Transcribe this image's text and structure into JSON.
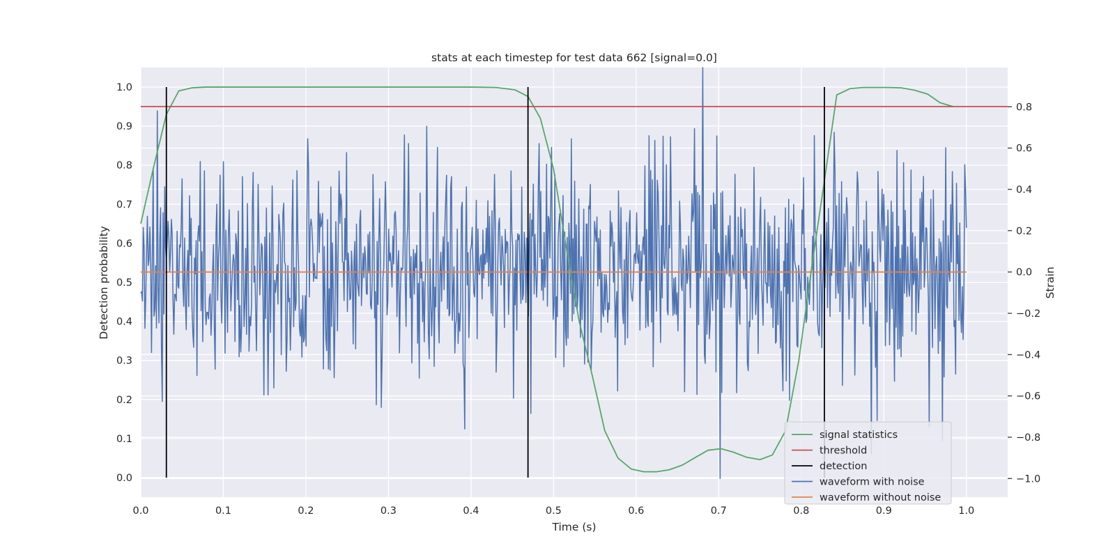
{
  "chart_data": {
    "type": "line",
    "title": "stats at each timestep for test data 662 [signal=0.0]",
    "xlabel": "Time (s)",
    "ylabel": "Detection probability",
    "ylabel_right": "Strain",
    "xlim": [
      0.0,
      1.05
    ],
    "ylim": [
      -0.05,
      1.05
    ],
    "ylim_right": [
      -1.09,
      0.99
    ],
    "x_ticks": [
      0.0,
      0.1,
      0.2,
      0.3,
      0.4,
      0.5,
      0.6,
      0.7,
      0.8,
      0.9,
      1.0
    ],
    "x_tick_labels": [
      "0.0",
      "0.1",
      "0.2",
      "0.3",
      "0.4",
      "0.5",
      "0.6",
      "0.7",
      "0.8",
      "0.9",
      "1.0"
    ],
    "y_ticks": [
      0.0,
      0.1,
      0.2,
      0.3,
      0.4,
      0.5,
      0.6,
      0.7,
      0.8,
      0.9,
      1.0
    ],
    "y_tick_labels": [
      "0.0",
      "0.1",
      "0.2",
      "0.3",
      "0.4",
      "0.5",
      "0.6",
      "0.7",
      "0.8",
      "0.9",
      "1.0"
    ],
    "y_right_ticks": [
      -1.0,
      -0.8,
      -0.6,
      -0.4,
      -0.2,
      0.0,
      0.2,
      0.4,
      0.6,
      0.8
    ],
    "y_right_tick_labels": [
      "−1.0",
      "−0.8",
      "−0.6",
      "−0.4",
      "−0.2",
      "0.0",
      "0.2",
      "0.4",
      "0.6",
      "0.8"
    ],
    "grid": true,
    "legend_position": "lower-right",
    "series": [
      {
        "name": "signal statistics",
        "axis": "left",
        "color": "#55a868",
        "x": [
          0.0,
          0.015,
          0.031,
          0.046,
          0.062,
          0.078,
          0.1,
          0.2,
          0.3,
          0.4,
          0.43,
          0.453,
          0.469,
          0.484,
          0.5,
          0.516,
          0.531,
          0.547,
          0.562,
          0.578,
          0.594,
          0.609,
          0.625,
          0.64,
          0.656,
          0.672,
          0.687,
          0.703,
          0.718,
          0.734,
          0.75,
          0.765,
          0.781,
          0.797,
          0.812,
          0.828,
          0.843,
          0.859,
          0.875,
          0.89,
          0.906,
          0.921,
          0.937,
          0.953,
          0.968,
          0.984
        ],
        "y": [
          0.65,
          0.79,
          0.93,
          0.99,
          0.998,
          1.0,
          1.0,
          1.0,
          1.0,
          1.0,
          0.999,
          0.993,
          0.976,
          0.92,
          0.79,
          0.58,
          0.4,
          0.26,
          0.12,
          0.05,
          0.022,
          0.015,
          0.015,
          0.02,
          0.032,
          0.052,
          0.07,
          0.074,
          0.065,
          0.052,
          0.046,
          0.058,
          0.12,
          0.3,
          0.53,
          0.76,
          0.98,
          0.996,
          0.999,
          0.999,
          0.999,
          0.998,
          0.992,
          0.982,
          0.96,
          0.95
        ]
      },
      {
        "name": "threshold",
        "axis": "left",
        "color": "#c44e52",
        "x": [
          0.0,
          1.05
        ],
        "y": [
          0.95,
          0.95
        ]
      },
      {
        "name": "detection",
        "axis": "left",
        "color": "#000000",
        "segments": [
          {
            "x": 0.031,
            "y": [
              0.0,
              1.0
            ]
          },
          {
            "x": 0.469,
            "y": [
              0.0,
              1.0
            ]
          },
          {
            "x": 0.828,
            "y": [
              0.0,
              1.0
            ]
          }
        ]
      },
      {
        "name": "waveform with noise",
        "axis": "right",
        "color": "#4c72b0",
        "n_points": 1000,
        "x_range": [
          0.0,
          1.0
        ],
        "y_range": [
          -1.0,
          1.0
        ],
        "notable_points": [
          {
            "x": 0.02,
            "y": 0.78
          },
          {
            "x": 0.392,
            "y": -0.76
          },
          {
            "x": 0.681,
            "y": 0.99
          },
          {
            "x": 0.702,
            "y": -1.0
          },
          {
            "x": 0.971,
            "y": -0.82
          }
        ]
      },
      {
        "name": "waveform without noise",
        "axis": "right",
        "color": "#dd8452",
        "x": [
          0.0,
          1.0
        ],
        "y": [
          0.0,
          0.0
        ]
      }
    ]
  }
}
